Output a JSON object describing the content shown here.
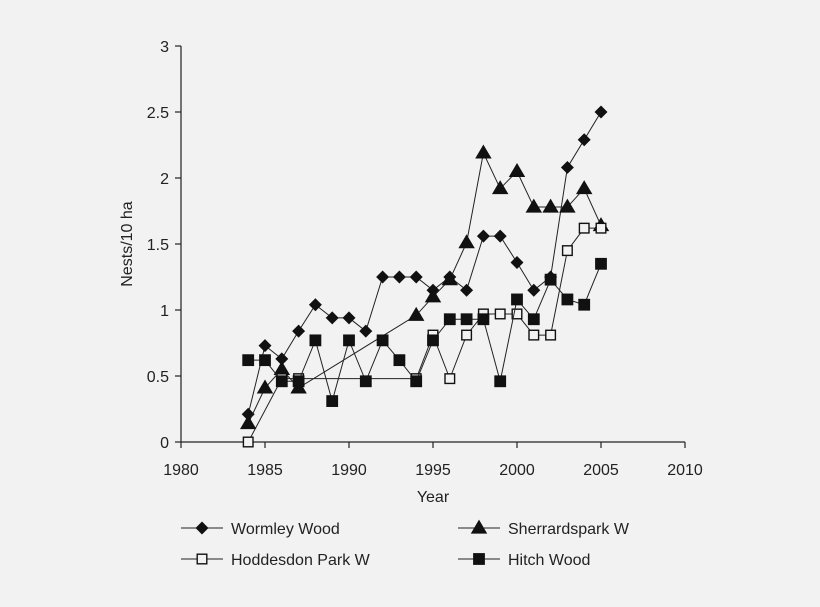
{
  "chart_data": {
    "type": "line",
    "xlabel": "Year",
    "ylabel": "Nests/10 ha",
    "xlim": [
      1980,
      2010
    ],
    "ylim": [
      0,
      3
    ],
    "xticks": [
      "1980",
      "1985",
      "1990",
      "1995",
      "2000",
      "2005",
      "2010"
    ],
    "yticks": [
      "0",
      "0.5",
      "1",
      "1.5",
      "2",
      "2.5",
      "3"
    ],
    "legend_position": "bottom",
    "grid": false,
    "series": [
      {
        "name": "Wormley Wood",
        "marker": "diamond",
        "points": [
          [
            1984,
            0.21
          ],
          [
            1985,
            0.73
          ],
          [
            1986,
            0.63
          ],
          [
            1987,
            0.84
          ],
          [
            1988,
            1.04
          ],
          [
            1989,
            0.94
          ],
          [
            1990,
            0.94
          ],
          [
            1991,
            0.84
          ],
          [
            1992,
            1.25
          ],
          [
            1993,
            1.25
          ],
          [
            1994,
            1.25
          ],
          [
            1995,
            1.15
          ],
          [
            1996,
            1.25
          ],
          [
            1997,
            1.15
          ],
          [
            1998,
            1.56
          ],
          [
            1999,
            1.56
          ],
          [
            2000,
            1.36
          ],
          [
            2001,
            1.15
          ],
          [
            2002,
            1.25
          ],
          [
            2003,
            2.08
          ],
          [
            2004,
            2.29
          ],
          [
            2005,
            2.5
          ]
        ]
      },
      {
        "name": "Sherrardspark W",
        "marker": "triangle",
        "points": [
          [
            1984,
            0.14
          ],
          [
            1985,
            0.41
          ],
          [
            1986,
            0.55
          ],
          [
            1987,
            0.41
          ],
          [
            1994,
            0.96
          ],
          [
            1995,
            1.1
          ],
          [
            1996,
            1.23
          ],
          [
            1997,
            1.51
          ],
          [
            1998,
            2.19
          ],
          [
            1999,
            1.92
          ],
          [
            2000,
            2.05
          ],
          [
            2001,
            1.78
          ],
          [
            2002,
            1.78
          ],
          [
            2003,
            1.78
          ],
          [
            2004,
            1.92
          ],
          [
            2005,
            1.64
          ]
        ]
      },
      {
        "name": "Hoddesdon Park W",
        "marker": "square-open",
        "points": [
          [
            1984,
            0.0
          ],
          [
            1986,
            0.48
          ],
          [
            1987,
            0.48
          ],
          [
            1994,
            0.48
          ],
          [
            1995,
            0.81
          ],
          [
            1996,
            0.48
          ],
          [
            1997,
            0.81
          ],
          [
            1998,
            0.97
          ],
          [
            1999,
            0.97
          ],
          [
            2000,
            0.97
          ],
          [
            2001,
            0.81
          ],
          [
            2002,
            0.81
          ],
          [
            2003,
            1.45
          ],
          [
            2004,
            1.62
          ],
          [
            2005,
            1.62
          ]
        ]
      },
      {
        "name": "Hitch Wood",
        "marker": "square-filled",
        "points": [
          [
            1984,
            0.62
          ],
          [
            1985,
            0.62
          ],
          [
            1986,
            0.46
          ],
          [
            1987,
            0.46
          ],
          [
            1988,
            0.77
          ],
          [
            1989,
            0.31
          ],
          [
            1990,
            0.77
          ],
          [
            1991,
            0.46
          ],
          [
            1992,
            0.77
          ],
          [
            1993,
            0.62
          ],
          [
            1994,
            0.46
          ],
          [
            1995,
            0.77
          ],
          [
            1996,
            0.93
          ],
          [
            1997,
            0.93
          ],
          [
            1998,
            0.93
          ],
          [
            1999,
            0.46
          ],
          [
            2000,
            1.08
          ],
          [
            2001,
            0.93
          ],
          [
            2002,
            1.23
          ],
          [
            2003,
            1.08
          ],
          [
            2004,
            1.04
          ],
          [
            2005,
            1.35
          ]
        ]
      }
    ]
  }
}
